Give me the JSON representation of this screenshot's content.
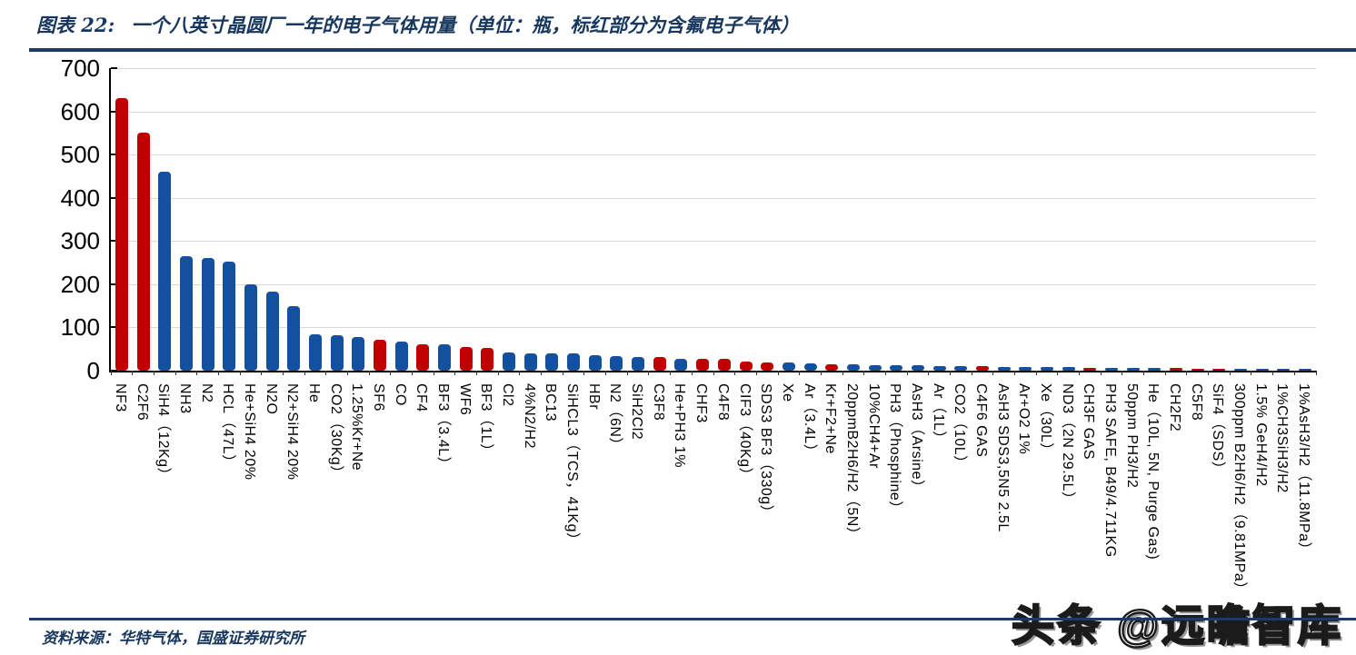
{
  "page": {
    "title_prefix": "图表 22:",
    "title": "一个八英寸晶圆厂一年的电子气体用量（单位：瓶，标红部分为含氟电子气体）",
    "source": "资料来源：华特气体，国盛证券研究所",
    "watermark": "头条 @远瞻智库",
    "colors": {
      "red": "#C00000",
      "blue": "#1450A0",
      "navy_rule": "#1F3864",
      "title_text": "#17375E",
      "gridline": "#D9D9D9",
      "axis": "#000000"
    }
  },
  "chart_data": {
    "type": "bar",
    "title": "一个八英寸晶圆厂一年的电子气体用量",
    "unit": "瓶",
    "red_meaning": "含氟电子气体",
    "xlabel": "",
    "ylabel": "",
    "ylim": [
      0,
      700
    ],
    "yticks": [
      0,
      100,
      200,
      300,
      400,
      500,
      600,
      700
    ],
    "grid": true,
    "legend": "none",
    "bars": [
      {
        "label": "NF3",
        "value": 630,
        "red": true
      },
      {
        "label": "C2F6",
        "value": 550,
        "red": true
      },
      {
        "label": "SiH4（12Kg）",
        "value": 460,
        "red": false
      },
      {
        "label": "NH3",
        "value": 265,
        "red": false
      },
      {
        "label": "N2",
        "value": 260,
        "red": false
      },
      {
        "label": "HCL（47L）",
        "value": 253,
        "red": false
      },
      {
        "label": "He+SiH4 20%",
        "value": 200,
        "red": false
      },
      {
        "label": "N2O",
        "value": 183,
        "red": false
      },
      {
        "label": "N2+SiH4 20%",
        "value": 150,
        "red": false
      },
      {
        "label": "He",
        "value": 85,
        "red": false
      },
      {
        "label": "CO2（30Kg）",
        "value": 82,
        "red": false
      },
      {
        "label": "1.25%Kr+Ne",
        "value": 78,
        "red": false
      },
      {
        "label": "SF6",
        "value": 72,
        "red": true
      },
      {
        "label": "CO",
        "value": 68,
        "red": false
      },
      {
        "label": "CF4",
        "value": 62,
        "red": true
      },
      {
        "label": "BF3（3.4L）",
        "value": 61,
        "red": false
      },
      {
        "label": "WF6",
        "value": 54,
        "red": true
      },
      {
        "label": "BF3（1L）",
        "value": 53,
        "red": true
      },
      {
        "label": "Cl2",
        "value": 43,
        "red": false
      },
      {
        "label": "4%N2/H2",
        "value": 41,
        "red": false
      },
      {
        "label": "BC13",
        "value": 40,
        "red": false
      },
      {
        "label": "SiHCL3（TCS，41Kg）",
        "value": 40,
        "red": false
      },
      {
        "label": "HBr",
        "value": 36,
        "red": false
      },
      {
        "label": "N2（6N）",
        "value": 33,
        "red": false
      },
      {
        "label": "SiH2Cl2",
        "value": 32,
        "red": false
      },
      {
        "label": "C3F8",
        "value": 32,
        "red": true
      },
      {
        "label": "He+PH3 1%",
        "value": 28,
        "red": false
      },
      {
        "label": "CHF3",
        "value": 28,
        "red": true
      },
      {
        "label": "C4F8",
        "value": 27,
        "red": true
      },
      {
        "label": "CIF3（40Kg）",
        "value": 21,
        "red": true
      },
      {
        "label": "SDS3 BF3（330g）",
        "value": 19,
        "red": true
      },
      {
        "label": "Xe",
        "value": 18,
        "red": false
      },
      {
        "label": "Ar（3.4L）",
        "value": 17,
        "red": false
      },
      {
        "label": "Kr+F2+Ne",
        "value": 15,
        "red": true
      },
      {
        "label": "20ppmB2H6/H2（5N）",
        "value": 15,
        "red": false
      },
      {
        "label": "10%CH4+Ar",
        "value": 13,
        "red": false
      },
      {
        "label": "PH3（Phosphine）",
        "value": 12,
        "red": false
      },
      {
        "label": "AsH3（Arsine）",
        "value": 12,
        "red": false
      },
      {
        "label": "Ar（1L）",
        "value": 11,
        "red": false
      },
      {
        "label": "CO2（10L）",
        "value": 10,
        "red": false
      },
      {
        "label": "C4F6 GAS",
        "value": 10,
        "red": true
      },
      {
        "label": "AsH3 SDS3,5N5 2.5L",
        "value": 9,
        "red": false
      },
      {
        "label": "Ar+O2 1%",
        "value": 9,
        "red": false
      },
      {
        "label": "Xe（30L）",
        "value": 8,
        "red": false
      },
      {
        "label": "ND3（2N 29.5L）",
        "value": 8,
        "red": false
      },
      {
        "label": "CH3F GAS",
        "value": 7,
        "red": true
      },
      {
        "label": "PH3 SAFE, B49/4.711KG",
        "value": 7,
        "red": false
      },
      {
        "label": "50ppm PH3/H2",
        "value": 6,
        "red": false
      },
      {
        "label": "He（10L, 5N, Purge Gas)",
        "value": 6,
        "red": false
      },
      {
        "label": "CH2F2",
        "value": 6,
        "red": true
      },
      {
        "label": "C5F8",
        "value": 5,
        "red": true
      },
      {
        "label": "SiF4（SDS）",
        "value": 5,
        "red": true
      },
      {
        "label": "300ppm B2H6/H2（9.81MPa）",
        "value": 4,
        "red": false
      },
      {
        "label": "1.5% GeH4/H2",
        "value": 4,
        "red": false
      },
      {
        "label": "1%CH3SiH3/H2",
        "value": 4,
        "red": false
      },
      {
        "label": "1%AsH3/H2（11.8MPa）",
        "value": 4,
        "red": false
      }
    ]
  }
}
